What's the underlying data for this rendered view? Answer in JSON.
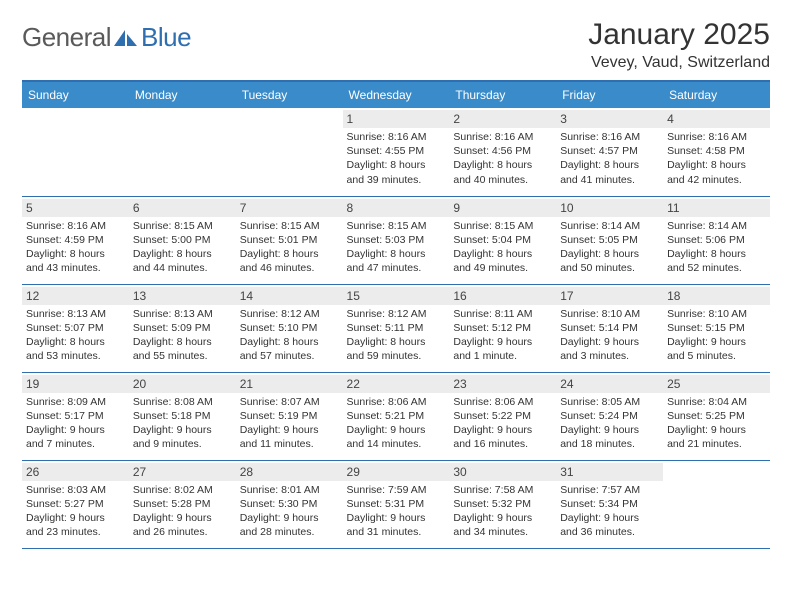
{
  "brand": {
    "word1": "General",
    "word2": "Blue"
  },
  "title": {
    "month": "January 2025",
    "location": "Vevey, Vaud, Switzerland"
  },
  "colors": {
    "header_bg": "#3a8bc9",
    "header_text": "#ffffff",
    "rule": "#2f6fb0",
    "daynum_bg": "#ececec",
    "text": "#333333",
    "logo_gray": "#5a5a5a",
    "logo_blue": "#2f6fb0"
  },
  "fonts": {
    "title_size": 30,
    "location_size": 16,
    "dow_size": 12,
    "daynum_size": 12,
    "info_size": 10.5
  },
  "dow": [
    "Sunday",
    "Monday",
    "Tuesday",
    "Wednesday",
    "Thursday",
    "Friday",
    "Saturday"
  ],
  "weeks": [
    [
      null,
      null,
      null,
      {
        "n": "1",
        "sr": "Sunrise: 8:16 AM",
        "ss": "Sunset: 4:55 PM",
        "d1": "Daylight: 8 hours",
        "d2": "and 39 minutes."
      },
      {
        "n": "2",
        "sr": "Sunrise: 8:16 AM",
        "ss": "Sunset: 4:56 PM",
        "d1": "Daylight: 8 hours",
        "d2": "and 40 minutes."
      },
      {
        "n": "3",
        "sr": "Sunrise: 8:16 AM",
        "ss": "Sunset: 4:57 PM",
        "d1": "Daylight: 8 hours",
        "d2": "and 41 minutes."
      },
      {
        "n": "4",
        "sr": "Sunrise: 8:16 AM",
        "ss": "Sunset: 4:58 PM",
        "d1": "Daylight: 8 hours",
        "d2": "and 42 minutes."
      }
    ],
    [
      {
        "n": "5",
        "sr": "Sunrise: 8:16 AM",
        "ss": "Sunset: 4:59 PM",
        "d1": "Daylight: 8 hours",
        "d2": "and 43 minutes."
      },
      {
        "n": "6",
        "sr": "Sunrise: 8:15 AM",
        "ss": "Sunset: 5:00 PM",
        "d1": "Daylight: 8 hours",
        "d2": "and 44 minutes."
      },
      {
        "n": "7",
        "sr": "Sunrise: 8:15 AM",
        "ss": "Sunset: 5:01 PM",
        "d1": "Daylight: 8 hours",
        "d2": "and 46 minutes."
      },
      {
        "n": "8",
        "sr": "Sunrise: 8:15 AM",
        "ss": "Sunset: 5:03 PM",
        "d1": "Daylight: 8 hours",
        "d2": "and 47 minutes."
      },
      {
        "n": "9",
        "sr": "Sunrise: 8:15 AM",
        "ss": "Sunset: 5:04 PM",
        "d1": "Daylight: 8 hours",
        "d2": "and 49 minutes."
      },
      {
        "n": "10",
        "sr": "Sunrise: 8:14 AM",
        "ss": "Sunset: 5:05 PM",
        "d1": "Daylight: 8 hours",
        "d2": "and 50 minutes."
      },
      {
        "n": "11",
        "sr": "Sunrise: 8:14 AM",
        "ss": "Sunset: 5:06 PM",
        "d1": "Daylight: 8 hours",
        "d2": "and 52 minutes."
      }
    ],
    [
      {
        "n": "12",
        "sr": "Sunrise: 8:13 AM",
        "ss": "Sunset: 5:07 PM",
        "d1": "Daylight: 8 hours",
        "d2": "and 53 minutes."
      },
      {
        "n": "13",
        "sr": "Sunrise: 8:13 AM",
        "ss": "Sunset: 5:09 PM",
        "d1": "Daylight: 8 hours",
        "d2": "and 55 minutes."
      },
      {
        "n": "14",
        "sr": "Sunrise: 8:12 AM",
        "ss": "Sunset: 5:10 PM",
        "d1": "Daylight: 8 hours",
        "d2": "and 57 minutes."
      },
      {
        "n": "15",
        "sr": "Sunrise: 8:12 AM",
        "ss": "Sunset: 5:11 PM",
        "d1": "Daylight: 8 hours",
        "d2": "and 59 minutes."
      },
      {
        "n": "16",
        "sr": "Sunrise: 8:11 AM",
        "ss": "Sunset: 5:12 PM",
        "d1": "Daylight: 9 hours",
        "d2": "and 1 minute."
      },
      {
        "n": "17",
        "sr": "Sunrise: 8:10 AM",
        "ss": "Sunset: 5:14 PM",
        "d1": "Daylight: 9 hours",
        "d2": "and 3 minutes."
      },
      {
        "n": "18",
        "sr": "Sunrise: 8:10 AM",
        "ss": "Sunset: 5:15 PM",
        "d1": "Daylight: 9 hours",
        "d2": "and 5 minutes."
      }
    ],
    [
      {
        "n": "19",
        "sr": "Sunrise: 8:09 AM",
        "ss": "Sunset: 5:17 PM",
        "d1": "Daylight: 9 hours",
        "d2": "and 7 minutes."
      },
      {
        "n": "20",
        "sr": "Sunrise: 8:08 AM",
        "ss": "Sunset: 5:18 PM",
        "d1": "Daylight: 9 hours",
        "d2": "and 9 minutes."
      },
      {
        "n": "21",
        "sr": "Sunrise: 8:07 AM",
        "ss": "Sunset: 5:19 PM",
        "d1": "Daylight: 9 hours",
        "d2": "and 11 minutes."
      },
      {
        "n": "22",
        "sr": "Sunrise: 8:06 AM",
        "ss": "Sunset: 5:21 PM",
        "d1": "Daylight: 9 hours",
        "d2": "and 14 minutes."
      },
      {
        "n": "23",
        "sr": "Sunrise: 8:06 AM",
        "ss": "Sunset: 5:22 PM",
        "d1": "Daylight: 9 hours",
        "d2": "and 16 minutes."
      },
      {
        "n": "24",
        "sr": "Sunrise: 8:05 AM",
        "ss": "Sunset: 5:24 PM",
        "d1": "Daylight: 9 hours",
        "d2": "and 18 minutes."
      },
      {
        "n": "25",
        "sr": "Sunrise: 8:04 AM",
        "ss": "Sunset: 5:25 PM",
        "d1": "Daylight: 9 hours",
        "d2": "and 21 minutes."
      }
    ],
    [
      {
        "n": "26",
        "sr": "Sunrise: 8:03 AM",
        "ss": "Sunset: 5:27 PM",
        "d1": "Daylight: 9 hours",
        "d2": "and 23 minutes."
      },
      {
        "n": "27",
        "sr": "Sunrise: 8:02 AM",
        "ss": "Sunset: 5:28 PM",
        "d1": "Daylight: 9 hours",
        "d2": "and 26 minutes."
      },
      {
        "n": "28",
        "sr": "Sunrise: 8:01 AM",
        "ss": "Sunset: 5:30 PM",
        "d1": "Daylight: 9 hours",
        "d2": "and 28 minutes."
      },
      {
        "n": "29",
        "sr": "Sunrise: 7:59 AM",
        "ss": "Sunset: 5:31 PM",
        "d1": "Daylight: 9 hours",
        "d2": "and 31 minutes."
      },
      {
        "n": "30",
        "sr": "Sunrise: 7:58 AM",
        "ss": "Sunset: 5:32 PM",
        "d1": "Daylight: 9 hours",
        "d2": "and 34 minutes."
      },
      {
        "n": "31",
        "sr": "Sunrise: 7:57 AM",
        "ss": "Sunset: 5:34 PM",
        "d1": "Daylight: 9 hours",
        "d2": "and 36 minutes."
      },
      null
    ]
  ]
}
